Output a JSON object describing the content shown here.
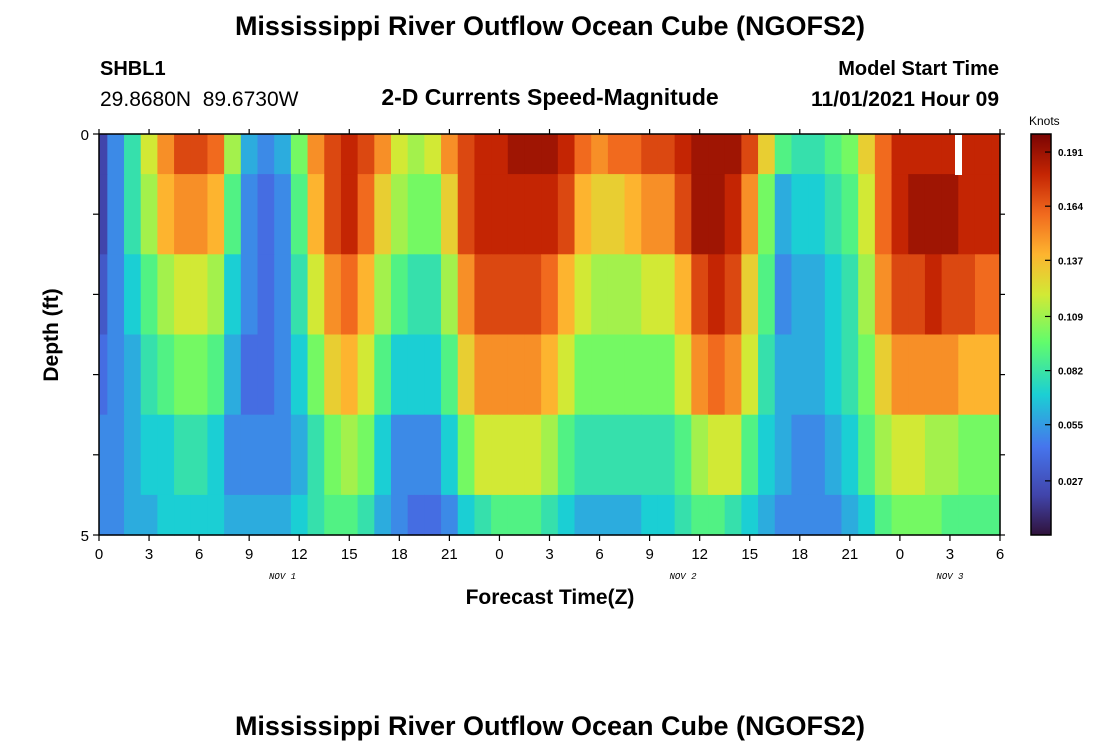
{
  "chart_data": {
    "type": "heatmap",
    "title": "Mississippi River Outflow Ocean Cube (NGOFS2)",
    "station_id": "SHBL1",
    "station_coords": "29.8680N  89.6730W",
    "subtitle": "2-D Currents Speed-Magnitude",
    "model_start_label": "Model Start Time",
    "model_start_value": "11/01/2021 Hour 09",
    "xlabel": "Forecast Time(Z)",
    "ylabel": "Depth (ft)",
    "x_tick_labels": [
      "0",
      "3",
      "6",
      "9",
      "12",
      "15",
      "18",
      "21",
      "0",
      "3",
      "6",
      "9",
      "12",
      "15",
      "18",
      "21",
      "0",
      "3",
      "6"
    ],
    "date_labels": [
      {
        "label": "NOV 1",
        "hour": 11
      },
      {
        "label": "NOV 2",
        "hour": 35
      },
      {
        "label": "NOV 3",
        "hour": 51
      }
    ],
    "xlim": [
      0,
      54
    ],
    "ylim": [
      0,
      5
    ],
    "y_tick_labels": [
      "0",
      "5"
    ],
    "colorbar_unit": "Knots",
    "colorbar_ticks": [
      "0.191",
      "0.164",
      "0.137",
      "0.109",
      "0.082",
      "0.055",
      "0.027"
    ],
    "colorbar_range": [
      0.0,
      0.2
    ],
    "depth_levels": [
      "0-0.5",
      "0.5-1.5",
      "1.5-2.5",
      "2.5-3.5",
      "3.5-4.5",
      "4.5-5"
    ],
    "hours": [
      0,
      1,
      2,
      3,
      4,
      5,
      6,
      7,
      8,
      9,
      10,
      11,
      12,
      13,
      14,
      15,
      16,
      17,
      18,
      19,
      20,
      21,
      22,
      23,
      24,
      25,
      26,
      27,
      28,
      29,
      30,
      31,
      32,
      33,
      34,
      35,
      36,
      37,
      38,
      39,
      40,
      41,
      42,
      43,
      44,
      45,
      46,
      47,
      48,
      49,
      50,
      51,
      52,
      53,
      54
    ],
    "values": [
      [
        0.02,
        0.05,
        0.08,
        0.12,
        0.15,
        0.17,
        0.17,
        0.16,
        0.11,
        0.06,
        0.05,
        0.06,
        0.1,
        0.15,
        0.17,
        0.18,
        0.17,
        0.15,
        0.12,
        0.11,
        0.12,
        0.15,
        0.17,
        0.18,
        0.18,
        0.19,
        0.19,
        0.19,
        0.18,
        0.16,
        0.15,
        0.16,
        0.16,
        0.17,
        0.17,
        0.18,
        0.19,
        0.19,
        0.19,
        0.17,
        0.13,
        0.09,
        0.08,
        0.08,
        0.09,
        0.1,
        0.13,
        0.16,
        0.18,
        0.18,
        0.18,
        0.18,
        0.18,
        0.18,
        0.18
      ],
      [
        0.02,
        0.05,
        0.08,
        0.11,
        0.14,
        0.15,
        0.15,
        0.14,
        0.09,
        0.05,
        0.04,
        0.05,
        0.09,
        0.14,
        0.17,
        0.18,
        0.16,
        0.13,
        0.11,
        0.1,
        0.1,
        0.13,
        0.17,
        0.18,
        0.18,
        0.18,
        0.18,
        0.18,
        0.17,
        0.14,
        0.13,
        0.13,
        0.14,
        0.15,
        0.15,
        0.17,
        0.19,
        0.19,
        0.18,
        0.15,
        0.1,
        0.06,
        0.07,
        0.07,
        0.08,
        0.09,
        0.12,
        0.16,
        0.18,
        0.19,
        0.19,
        0.19,
        0.18,
        0.18,
        0.18
      ],
      [
        0.03,
        0.05,
        0.07,
        0.09,
        0.11,
        0.12,
        0.12,
        0.11,
        0.07,
        0.05,
        0.04,
        0.05,
        0.08,
        0.12,
        0.15,
        0.16,
        0.14,
        0.11,
        0.09,
        0.08,
        0.08,
        0.11,
        0.15,
        0.17,
        0.17,
        0.17,
        0.17,
        0.16,
        0.14,
        0.12,
        0.11,
        0.11,
        0.11,
        0.12,
        0.12,
        0.14,
        0.17,
        0.18,
        0.17,
        0.13,
        0.09,
        0.05,
        0.06,
        0.06,
        0.07,
        0.08,
        0.11,
        0.15,
        0.17,
        0.17,
        0.18,
        0.17,
        0.17,
        0.16,
        0.16
      ],
      [
        0.04,
        0.05,
        0.06,
        0.08,
        0.09,
        0.1,
        0.1,
        0.09,
        0.06,
        0.04,
        0.04,
        0.05,
        0.07,
        0.1,
        0.13,
        0.14,
        0.12,
        0.09,
        0.07,
        0.07,
        0.07,
        0.09,
        0.13,
        0.15,
        0.15,
        0.15,
        0.15,
        0.14,
        0.12,
        0.1,
        0.1,
        0.1,
        0.1,
        0.1,
        0.1,
        0.12,
        0.15,
        0.16,
        0.15,
        0.12,
        0.08,
        0.06,
        0.06,
        0.06,
        0.07,
        0.08,
        0.1,
        0.13,
        0.15,
        0.15,
        0.15,
        0.15,
        0.14,
        0.14,
        0.14
      ],
      [
        0.05,
        0.05,
        0.06,
        0.07,
        0.07,
        0.08,
        0.08,
        0.07,
        0.05,
        0.05,
        0.05,
        0.05,
        0.06,
        0.08,
        0.1,
        0.11,
        0.1,
        0.07,
        0.05,
        0.05,
        0.05,
        0.07,
        0.1,
        0.12,
        0.12,
        0.12,
        0.12,
        0.11,
        0.09,
        0.08,
        0.08,
        0.08,
        0.08,
        0.08,
        0.08,
        0.09,
        0.11,
        0.12,
        0.12,
        0.09,
        0.07,
        0.06,
        0.05,
        0.05,
        0.06,
        0.07,
        0.09,
        0.11,
        0.12,
        0.12,
        0.11,
        0.11,
        0.1,
        0.1,
        0.1
      ],
      [
        0.05,
        0.05,
        0.06,
        0.06,
        0.07,
        0.07,
        0.07,
        0.07,
        0.06,
        0.06,
        0.06,
        0.06,
        0.07,
        0.08,
        0.09,
        0.09,
        0.08,
        0.06,
        0.05,
        0.04,
        0.04,
        0.05,
        0.07,
        0.08,
        0.09,
        0.09,
        0.09,
        0.08,
        0.07,
        0.06,
        0.06,
        0.06,
        0.06,
        0.07,
        0.07,
        0.08,
        0.09,
        0.09,
        0.08,
        0.07,
        0.06,
        0.05,
        0.05,
        0.05,
        0.05,
        0.06,
        0.07,
        0.09,
        0.1,
        0.1,
        0.1,
        0.09,
        0.09,
        0.09,
        0.09
      ]
    ]
  },
  "footer_title": "Mississippi River Outflow Ocean Cube (NGOFS2)"
}
